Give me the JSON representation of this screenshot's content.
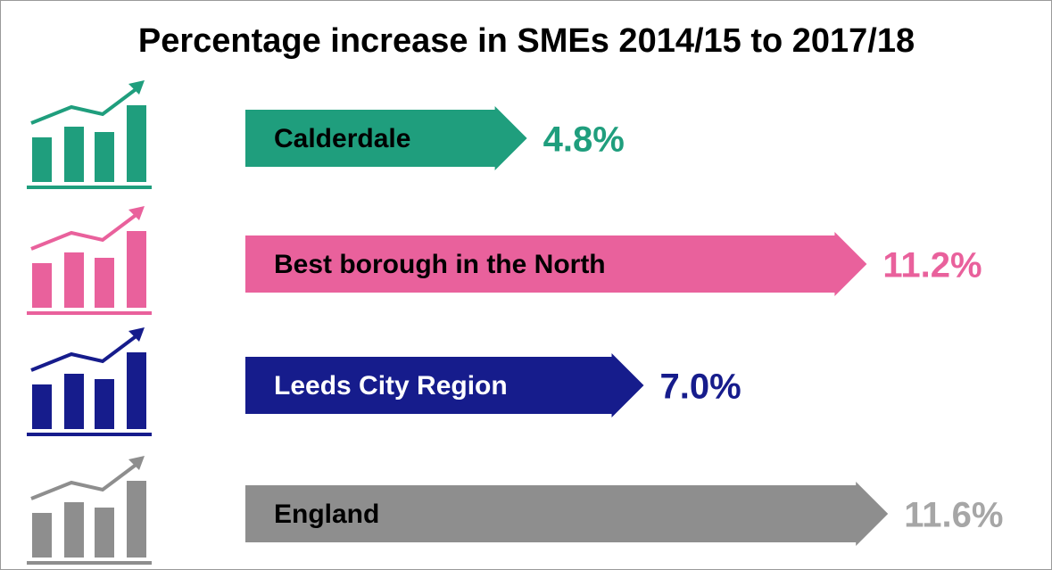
{
  "chart_data": {
    "type": "bar",
    "orientation": "horizontal",
    "title": "Percentage increase in SMEs 2014/15 to 2017/18",
    "categories": [
      "Calderdale",
      "Best borough in the North",
      "Leeds City Region",
      "England"
    ],
    "values": [
      4.8,
      11.2,
      7.0,
      11.6
    ],
    "value_labels": [
      "4.8%",
      "11.2%",
      "7.0%",
      "11.6%"
    ],
    "colors": [
      "#1f9e7d",
      "#e9619c",
      "#161c8c",
      "#8e8e8e"
    ],
    "value_label_colors": [
      "#1f9e7d",
      "#e9619c",
      "#161c8c",
      "#a6a6a6"
    ],
    "label_text_colors": [
      "#000000",
      "#000000",
      "#ffffff",
      "#000000"
    ]
  }
}
